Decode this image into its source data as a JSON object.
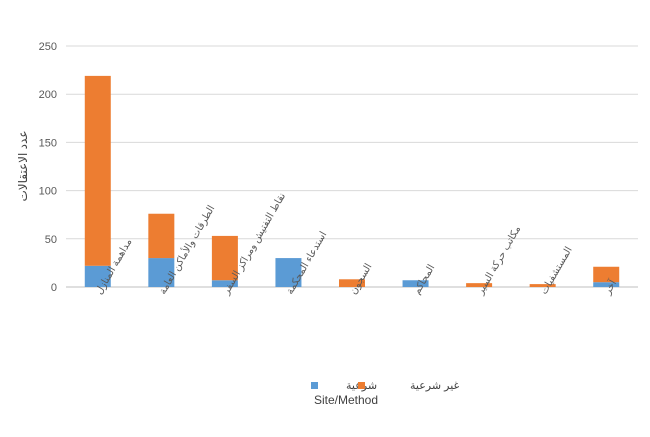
{
  "chart_data": {
    "type": "bar",
    "stacked": true,
    "categories": [
      "مداهمة المنازل",
      "الطرقات والأماكن العامة",
      "نقاط التفتيش ومراكز السفر",
      "استدعاء المحكمة",
      "السجون",
      "المحاكم",
      "مكاتب حركة السير",
      "المستشفيات",
      "آخر"
    ],
    "series": [
      {
        "name": "شرعية",
        "color": "#5B9BD5",
        "values": [
          22,
          30,
          7,
          30,
          0,
          7,
          0,
          0,
          5
        ]
      },
      {
        "name": "غير شرعية",
        "color": "#ED7D31",
        "values": [
          197,
          46,
          46,
          0,
          8,
          0,
          4,
          3,
          16
        ]
      }
    ],
    "xlabel": "Site/Method",
    "ylabel": "عدد الاعتقالات",
    "ylim": [
      0,
      250
    ],
    "yticks": [
      "0",
      "50",
      "100",
      "150",
      "200",
      "250"
    ],
    "grid": true,
    "legend_position": "bottom"
  }
}
